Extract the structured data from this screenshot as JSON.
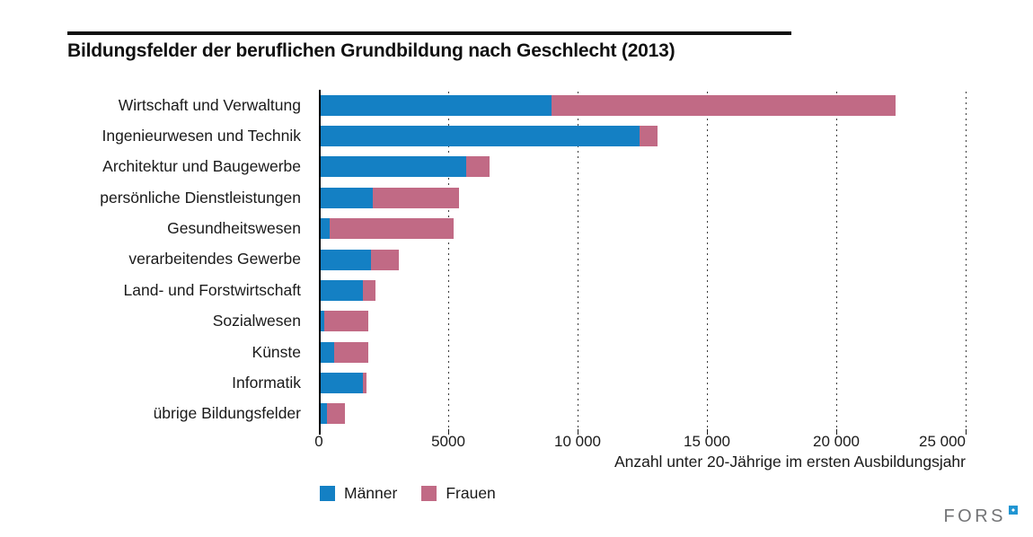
{
  "chart_data": {
    "type": "bar",
    "orientation": "horizontal_stacked",
    "title": "Bildungsfelder der beruflichen Grundbildung nach Geschlecht (2013)",
    "categories": [
      "Wirtschaft und Verwaltung",
      "Ingenieurwesen und Technik",
      "Architektur und Baugewerbe",
      "persönliche Dienstleistungen",
      "Gesundheitswesen",
      "verarbeitendes Gewerbe",
      "Land- und Forstwirtschaft",
      "Sozialwesen",
      "Künste",
      "Informatik",
      "übrige Bildungsfelder"
    ],
    "series": [
      {
        "name": "Männer",
        "key": "maenner",
        "color": "#1480c4",
        "values": [
          9000,
          12400,
          5700,
          2100,
          400,
          2000,
          1700,
          200,
          600,
          1700,
          300
        ]
      },
      {
        "name": "Frauen",
        "key": "frauen",
        "color": "#c16a85",
        "values": [
          13300,
          700,
          900,
          3300,
          4800,
          1100,
          500,
          1700,
          1300,
          150,
          700
        ]
      }
    ],
    "xlabel": "Anzahl unter 20-Jährige im ersten Ausbildungsjahr",
    "ylabel": "",
    "xlim": [
      0,
      25000
    ],
    "x_ticks": [
      {
        "value": 0,
        "label": "0"
      },
      {
        "value": 5000,
        "label": "5000"
      },
      {
        "value": 10000,
        "label": "10 000"
      },
      {
        "value": 15000,
        "label": "15 000"
      },
      {
        "value": 20000,
        "label": "20 000"
      },
      {
        "value": 25000,
        "label": "25 000"
      }
    ],
    "grid": "vertical_dashed",
    "legend_position": "bottom-left"
  },
  "footer": {
    "logo_text": "FORS"
  }
}
